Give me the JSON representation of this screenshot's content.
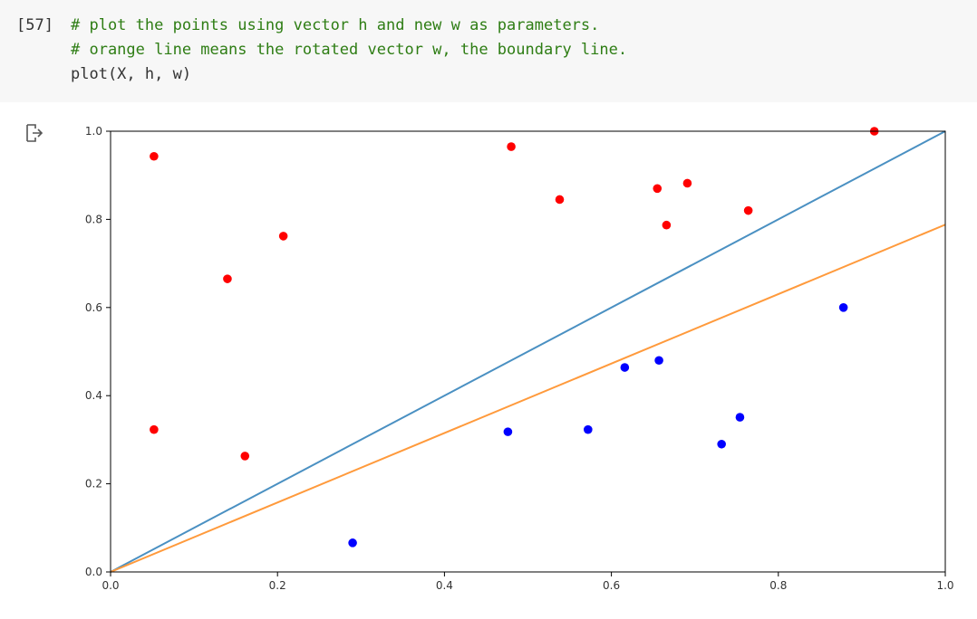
{
  "cell": {
    "execution_count": "[57]",
    "lines": [
      {
        "text": "# plot the points using vector h and new w as parameters.",
        "kind": "comment"
      },
      {
        "text": "# orange line means the rotated vector w, the boundary line.",
        "kind": "comment"
      },
      {
        "text": "plot(X, h, w)",
        "kind": "plain"
      }
    ]
  },
  "output": {
    "icon": "output-arrow-icon"
  },
  "chart_data": {
    "type": "scatter",
    "title": "",
    "xlabel": "",
    "ylabel": "",
    "xlim": [
      0.0,
      1.0
    ],
    "ylim": [
      0.0,
      1.0
    ],
    "x_ticks": [
      "0.0",
      "0.2",
      "0.4",
      "0.6",
      "0.8",
      "1.0"
    ],
    "y_ticks": [
      "0.0",
      "0.2",
      "0.4",
      "0.6",
      "0.8",
      "1.0"
    ],
    "grid": false,
    "series": [
      {
        "color": "#ff0000",
        "points": [
          [
            0.052,
            0.943
          ],
          [
            0.052,
            0.323
          ],
          [
            0.14,
            0.665
          ],
          [
            0.161,
            0.263
          ],
          [
            0.207,
            0.762
          ],
          [
            0.48,
            0.965
          ],
          [
            0.538,
            0.845
          ],
          [
            0.655,
            0.87
          ],
          [
            0.666,
            0.787
          ],
          [
            0.691,
            0.882
          ],
          [
            0.764,
            0.82
          ],
          [
            0.915,
            1.0
          ]
        ]
      },
      {
        "color": "#0000ff",
        "points": [
          [
            0.29,
            0.066
          ],
          [
            0.476,
            0.318
          ],
          [
            0.572,
            0.323
          ],
          [
            0.616,
            0.464
          ],
          [
            0.657,
            0.48
          ],
          [
            0.732,
            0.29
          ],
          [
            0.754,
            0.351
          ],
          [
            0.878,
            0.6
          ]
        ]
      }
    ],
    "lines": [
      {
        "color": "#4a90c2",
        "x": [
          0.0,
          1.0
        ],
        "y": [
          0.0,
          1.0
        ]
      },
      {
        "color": "#ff9a3c",
        "x": [
          0.0,
          1.0
        ],
        "y": [
          0.0,
          0.788
        ]
      }
    ]
  }
}
